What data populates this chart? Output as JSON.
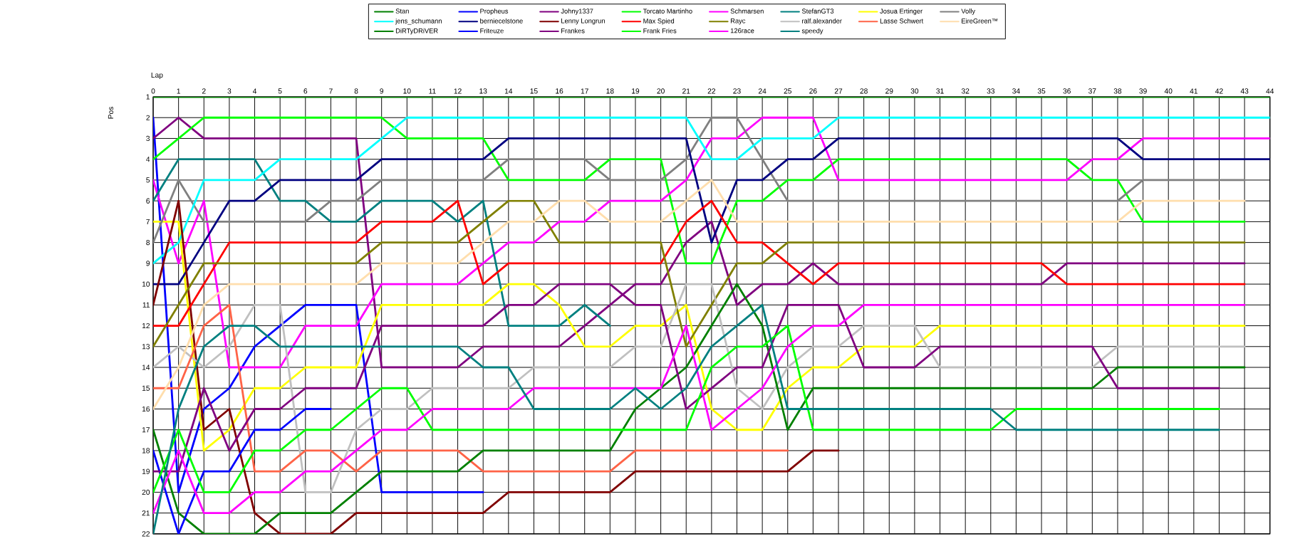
{
  "chart_data": {
    "type": "line",
    "xlabel": "Lap",
    "ylabel": "Pos",
    "x": [
      0,
      1,
      2,
      3,
      4,
      5,
      6,
      7,
      8,
      9,
      10,
      11,
      12,
      13,
      14,
      15,
      16,
      17,
      18,
      19,
      20,
      21,
      22,
      23,
      24,
      25,
      26,
      27,
      28,
      29,
      30,
      31,
      32,
      33,
      34,
      35,
      36,
      37,
      38,
      39,
      40,
      41,
      42,
      43,
      44
    ],
    "xlim": [
      0,
      44
    ],
    "xticks": [
      0,
      1,
      2,
      3,
      4,
      5,
      6,
      7,
      8,
      9,
      10,
      11,
      12,
      13,
      14,
      15,
      16,
      17,
      18,
      19,
      20,
      21,
      22,
      23,
      24,
      25,
      26,
      27,
      28,
      29,
      30,
      31,
      32,
      33,
      34,
      35,
      36,
      37,
      38,
      39,
      40,
      41,
      42,
      43,
      44
    ],
    "ylim": [
      22,
      1
    ],
    "yticks": [
      1,
      2,
      3,
      4,
      5,
      6,
      7,
      8,
      9,
      10,
      11,
      12,
      13,
      14,
      15,
      16,
      17,
      18,
      19,
      20,
      21,
      22
    ],
    "grid": true,
    "legend": "top",
    "series": [
      {
        "name": "Stan",
        "color": "#008000",
        "values": [
          1,
          1,
          1,
          1,
          1,
          1,
          1,
          1,
          1,
          1,
          1,
          1,
          1,
          1,
          1,
          1,
          1,
          1,
          1,
          1,
          1,
          1,
          1,
          1,
          1,
          1,
          1,
          1,
          1,
          1,
          1,
          1,
          1,
          1,
          1,
          1,
          1,
          1,
          1,
          1,
          1,
          1,
          1,
          1,
          1
        ]
      },
      {
        "name": "Propheus",
        "color": "#0000ff",
        "values": [
          2,
          20,
          16,
          15,
          13,
          12,
          11,
          11,
          11,
          20,
          20,
          20,
          20,
          20,
          null,
          null,
          null,
          null,
          null,
          null,
          null,
          null,
          null,
          null,
          null,
          null,
          null,
          null,
          null,
          null,
          null,
          null,
          null,
          null,
          null,
          null,
          null,
          null,
          null,
          null,
          null,
          null,
          null,
          null,
          null
        ]
      },
      {
        "name": "Johny1337",
        "color": "#800080",
        "values": [
          3,
          2,
          3,
          3,
          3,
          3,
          3,
          3,
          3,
          14,
          14,
          14,
          14,
          13,
          13,
          13,
          13,
          12,
          11,
          10,
          10,
          8,
          7,
          11,
          10,
          10,
          9,
          10,
          10,
          10,
          10,
          10,
          10,
          10,
          10,
          10,
          9,
          9,
          9,
          9,
          9,
          9,
          9,
          9,
          null
        ]
      },
      {
        "name": "Torcato Martinho",
        "color": "#00ff00",
        "values": [
          4,
          3,
          2,
          2,
          2,
          2,
          2,
          2,
          2,
          2,
          3,
          3,
          3,
          3,
          5,
          5,
          5,
          5,
          4,
          4,
          4,
          9,
          9,
          6,
          6,
          5,
          5,
          4,
          4,
          4,
          4,
          4,
          4,
          4,
          4,
          4,
          4,
          5,
          5,
          7,
          7,
          7,
          7,
          7,
          null
        ]
      },
      {
        "name": "Schmarsen",
        "color": "#ff00ff",
        "values": [
          5,
          9,
          6,
          14,
          14,
          14,
          12,
          12,
          12,
          10,
          10,
          10,
          10,
          9,
          8,
          8,
          7,
          7,
          6,
          6,
          6,
          5,
          3,
          3,
          2,
          2,
          2,
          5,
          5,
          5,
          5,
          5,
          5,
          5,
          5,
          5,
          5,
          4,
          4,
          3,
          3,
          3,
          3,
          3,
          3
        ]
      },
      {
        "name": "StefanGT3",
        "color": "#008080",
        "values": [
          6,
          4,
          4,
          4,
          4,
          6,
          6,
          7,
          7,
          6,
          6,
          6,
          7,
          6,
          12,
          12,
          12,
          11,
          12,
          null,
          null,
          null,
          null,
          null,
          null,
          null,
          null,
          null,
          null,
          null,
          null,
          null,
          null,
          null,
          null,
          null,
          null,
          null,
          null,
          null,
          null,
          null,
          null,
          null,
          null
        ]
      },
      {
        "name": "Josua Ertinger",
        "color": "#ffff00",
        "values": [
          7,
          7,
          18,
          17,
          15,
          15,
          14,
          14,
          14,
          11,
          11,
          11,
          11,
          11,
          10,
          10,
          11,
          13,
          13,
          12,
          12,
          11,
          16,
          17,
          17,
          15,
          14,
          14,
          13,
          13,
          13,
          12,
          12,
          12,
          12,
          12,
          12,
          12,
          12,
          12,
          12,
          12,
          12,
          12,
          null
        ]
      },
      {
        "name": "Volly",
        "color": "#808080",
        "values": [
          8,
          5,
          7,
          7,
          7,
          7,
          7,
          6,
          6,
          5,
          5,
          5,
          5,
          5,
          4,
          4,
          4,
          4,
          5,
          5,
          5,
          4,
          2,
          2,
          4,
          6,
          6,
          6,
          6,
          6,
          6,
          6,
          6,
          6,
          6,
          6,
          6,
          6,
          6,
          5,
          5,
          5,
          5,
          5,
          null
        ]
      },
      {
        "name": "jens_schumann",
        "color": "#00ffff",
        "values": [
          9,
          8,
          5,
          5,
          5,
          4,
          4,
          4,
          4,
          3,
          2,
          2,
          2,
          2,
          2,
          2,
          2,
          2,
          2,
          2,
          2,
          2,
          4,
          4,
          3,
          3,
          3,
          2,
          2,
          2,
          2,
          2,
          2,
          2,
          2,
          2,
          2,
          2,
          2,
          2,
          2,
          2,
          2,
          2,
          2
        ]
      },
      {
        "name": "berniecelstone",
        "color": "#000080",
        "values": [
          10,
          10,
          8,
          6,
          6,
          5,
          5,
          5,
          5,
          4,
          4,
          4,
          4,
          4,
          3,
          3,
          3,
          3,
          3,
          3,
          3,
          3,
          8,
          5,
          5,
          4,
          4,
          3,
          3,
          3,
          3,
          3,
          3,
          3,
          3,
          3,
          3,
          3,
          3,
          4,
          4,
          4,
          4,
          4,
          4
        ]
      },
      {
        "name": "Lenny Longrun",
        "color": "#800000",
        "values": [
          11,
          6,
          17,
          16,
          21,
          22,
          22,
          22,
          21,
          21,
          21,
          21,
          21,
          21,
          20,
          20,
          20,
          20,
          20,
          19,
          19,
          19,
          19,
          19,
          19,
          19,
          18,
          18,
          null,
          null,
          null,
          null,
          null,
          null,
          null,
          null,
          null,
          null,
          null,
          null,
          null,
          null,
          null,
          null,
          null
        ]
      },
      {
        "name": "Max Spied",
        "color": "#ff0000",
        "values": [
          12,
          12,
          10,
          8,
          8,
          8,
          8,
          8,
          8,
          7,
          7,
          7,
          6,
          10,
          9,
          9,
          9,
          9,
          9,
          9,
          9,
          7,
          6,
          8,
          8,
          9,
          10,
          9,
          9,
          9,
          9,
          9,
          9,
          9,
          9,
          9,
          10,
          10,
          10,
          10,
          10,
          10,
          10,
          10,
          null
        ]
      },
      {
        "name": "Rayc",
        "color": "#808000",
        "values": [
          13,
          11,
          9,
          9,
          9,
          9,
          9,
          9,
          9,
          8,
          8,
          8,
          8,
          7,
          6,
          6,
          8,
          8,
          8,
          8,
          8,
          13,
          11,
          9,
          9,
          8,
          8,
          8,
          8,
          8,
          8,
          8,
          8,
          8,
          8,
          8,
          8,
          8,
          8,
          8,
          8,
          8,
          8,
          8,
          null
        ]
      },
      {
        "name": "ralf.alexander",
        "color": "#c0c0c0",
        "values": [
          14,
          13,
          14,
          13,
          11,
          11,
          20,
          20,
          17,
          16,
          16,
          15,
          15,
          15,
          15,
          14,
          14,
          14,
          14,
          13,
          13,
          10,
          10,
          15,
          16,
          14,
          13,
          13,
          12,
          12,
          12,
          14,
          14,
          14,
          14,
          14,
          14,
          14,
          13,
          13,
          13,
          13,
          13,
          13,
          null
        ]
      },
      {
        "name": "Lasse Schwert",
        "color": "#ff6347",
        "values": [
          15,
          15,
          12,
          11,
          19,
          19,
          18,
          18,
          19,
          18,
          18,
          18,
          18,
          19,
          19,
          19,
          19,
          19,
          19,
          18,
          18,
          18,
          18,
          18,
          18,
          18,
          null,
          null,
          null,
          null,
          null,
          null,
          null,
          null,
          null,
          null,
          null,
          null,
          null,
          null,
          null,
          null,
          null,
          null,
          null
        ]
      },
      {
        "name": "EireGreen™",
        "color": "#ffdead",
        "values": [
          16,
          14,
          11,
          10,
          10,
          10,
          10,
          10,
          10,
          9,
          9,
          9,
          9,
          8,
          7,
          7,
          6,
          6,
          7,
          7,
          7,
          6,
          5,
          7,
          7,
          7,
          7,
          7,
          7,
          7,
          7,
          7,
          7,
          7,
          7,
          7,
          7,
          7,
          7,
          6,
          6,
          6,
          6,
          6,
          null
        ]
      },
      {
        "name": "DiRTyDRiVER",
        "color": "#008000",
        "values": [
          17,
          21,
          22,
          22,
          22,
          21,
          21,
          21,
          20,
          19,
          19,
          19,
          19,
          18,
          18,
          18,
          18,
          18,
          18,
          16,
          15,
          14,
          12,
          10,
          12,
          17,
          15,
          15,
          15,
          15,
          15,
          15,
          15,
          15,
          15,
          15,
          15,
          15,
          14,
          14,
          14,
          14,
          14,
          14,
          null
        ]
      },
      {
        "name": "Friteuze",
        "color": "#0000ff",
        "values": [
          18,
          22,
          19,
          19,
          17,
          17,
          16,
          16,
          null,
          null,
          null,
          null,
          null,
          null,
          null,
          null,
          null,
          null,
          null,
          null,
          null,
          null,
          null,
          null,
          null,
          null,
          null,
          null,
          null,
          null,
          null,
          null,
          null,
          null,
          null,
          null,
          null,
          null,
          null,
          null,
          null,
          null,
          null,
          null,
          null
        ]
      },
      {
        "name": "Frankes",
        "color": "#800080",
        "values": [
          19,
          19,
          15,
          18,
          16,
          16,
          15,
          15,
          15,
          12,
          12,
          12,
          12,
          12,
          11,
          11,
          10,
          10,
          10,
          11,
          11,
          16,
          15,
          14,
          14,
          11,
          11,
          11,
          14,
          14,
          14,
          13,
          13,
          13,
          13,
          13,
          13,
          13,
          15,
          15,
          15,
          15,
          15,
          null,
          null
        ]
      },
      {
        "name": "Frank Fries",
        "color": "#00ff00",
        "values": [
          20,
          17,
          20,
          20,
          18,
          18,
          17,
          17,
          16,
          15,
          15,
          17,
          17,
          17,
          17,
          17,
          17,
          17,
          17,
          17,
          17,
          17,
          14,
          13,
          13,
          12,
          17,
          17,
          17,
          17,
          17,
          17,
          17,
          17,
          16,
          16,
          16,
          16,
          16,
          16,
          16,
          16,
          16,
          null,
          null
        ]
      },
      {
        "name": "126race",
        "color": "#ff00ff",
        "values": [
          21,
          18,
          21,
          21,
          20,
          20,
          19,
          19,
          18,
          17,
          17,
          16,
          16,
          16,
          16,
          15,
          15,
          15,
          15,
          15,
          15,
          12,
          17,
          16,
          15,
          13,
          12,
          12,
          11,
          11,
          11,
          11,
          11,
          11,
          11,
          11,
          11,
          11,
          11,
          11,
          11,
          11,
          11,
          11,
          null
        ]
      },
      {
        "name": "speedy",
        "color": "#008080",
        "values": [
          22,
          16,
          13,
          12,
          12,
          13,
          13,
          13,
          13,
          13,
          13,
          13,
          13,
          14,
          14,
          16,
          16,
          16,
          16,
          15,
          16,
          15,
          13,
          12,
          11,
          16,
          16,
          16,
          16,
          16,
          16,
          16,
          16,
          16,
          17,
          17,
          17,
          17,
          17,
          17,
          17,
          17,
          17,
          null,
          null
        ]
      }
    ]
  }
}
